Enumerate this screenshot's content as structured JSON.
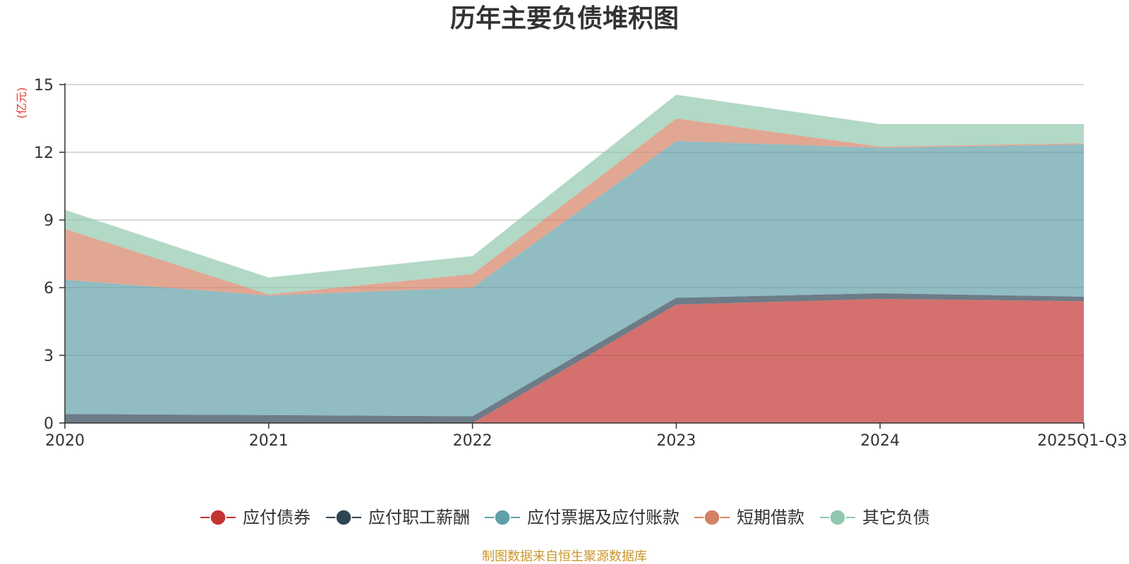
{
  "chart_data": {
    "type": "area",
    "stacked": true,
    "title": "历年主要负债堆积图",
    "ylabel": "(亿元)",
    "xlabel": "",
    "categories": [
      "2020",
      "2021",
      "2022",
      "2023",
      "2024",
      "2025Q1-Q3"
    ],
    "ylim": [
      0,
      15
    ],
    "yticks": [
      0,
      3,
      6,
      9,
      12,
      15
    ],
    "grid": true,
    "legend_position": "bottom",
    "series": [
      {
        "name": "应付债券",
        "color": "#c23531",
        "values": [
          0,
          0,
          0,
          5.25,
          5.5,
          5.4
        ]
      },
      {
        "name": "应付职工薪酬",
        "color": "#2f4554",
        "values": [
          0.4,
          0.35,
          0.3,
          0.3,
          0.25,
          0.2
        ]
      },
      {
        "name": "应付票据及应付账款",
        "color": "#61a0a8",
        "values": [
          5.95,
          5.3,
          5.7,
          6.95,
          6.45,
          6.75
        ]
      },
      {
        "name": "短期借款",
        "color": "#d48265",
        "values": [
          2.25,
          0.05,
          0.6,
          1.0,
          0.05,
          0.05
        ]
      },
      {
        "name": "其它负债",
        "color": "#91c7ae",
        "values": [
          0.85,
          0.75,
          0.8,
          1.05,
          1.0,
          0.85
        ]
      }
    ],
    "source_note": "制图数据来自恒生聚源数据库"
  }
}
